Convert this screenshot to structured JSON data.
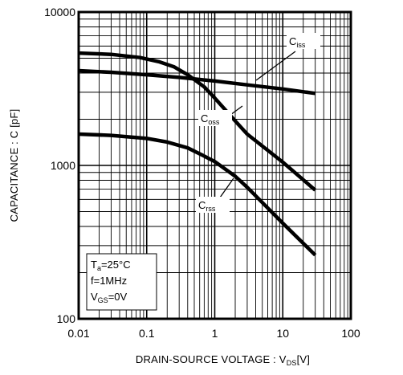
{
  "chart_data": {
    "type": "line",
    "title": "",
    "xlabel": {
      "main": "DRAIN-SOURCE VOLTAGE : V",
      "sub": "DS",
      "tail": "[V]"
    },
    "ylabel": "CAPACITANCE : C [pF]",
    "x_scale": "log",
    "y_scale": "log",
    "xlim": [
      0.01,
      100
    ],
    "ylim": [
      100,
      10000
    ],
    "x_tick_labels": [
      "0.01",
      "0.1",
      "1",
      "10",
      "100"
    ],
    "y_tick_labels": [
      "100",
      "1000",
      "10000"
    ],
    "grid": true,
    "series": [
      {
        "name": "Ciss",
        "label": {
          "main": "C",
          "sub": "iss"
        },
        "x": [
          0.01,
          0.03,
          0.1,
          0.3,
          1,
          3,
          10,
          30
        ],
        "values": [
          4150,
          4050,
          3900,
          3750,
          3550,
          3350,
          3150,
          2950
        ]
      },
      {
        "name": "Coss",
        "label": {
          "main": "C",
          "sub": "oss"
        },
        "x": [
          0.01,
          0.03,
          0.08,
          0.15,
          0.25,
          0.4,
          0.7,
          1,
          2,
          3,
          10,
          30
        ],
        "values": [
          5400,
          5300,
          5050,
          4750,
          4400,
          3900,
          3250,
          2750,
          1950,
          1600,
          1050,
          690
        ]
      },
      {
        "name": "Crss",
        "label": {
          "main": "C",
          "sub": "rss"
        },
        "x": [
          0.01,
          0.03,
          0.1,
          0.2,
          0.4,
          0.7,
          1,
          2,
          3,
          10,
          30
        ],
        "values": [
          1600,
          1570,
          1500,
          1420,
          1300,
          1150,
          1060,
          850,
          720,
          420,
          260
        ]
      }
    ],
    "conditions": [
      {
        "main": "T",
        "sub": "a",
        "tail": "=25°C"
      },
      {
        "main": "f=1MHz",
        "sub": "",
        "tail": ""
      },
      {
        "main": "V",
        "sub": "GS",
        "tail": "=0V"
      }
    ]
  }
}
